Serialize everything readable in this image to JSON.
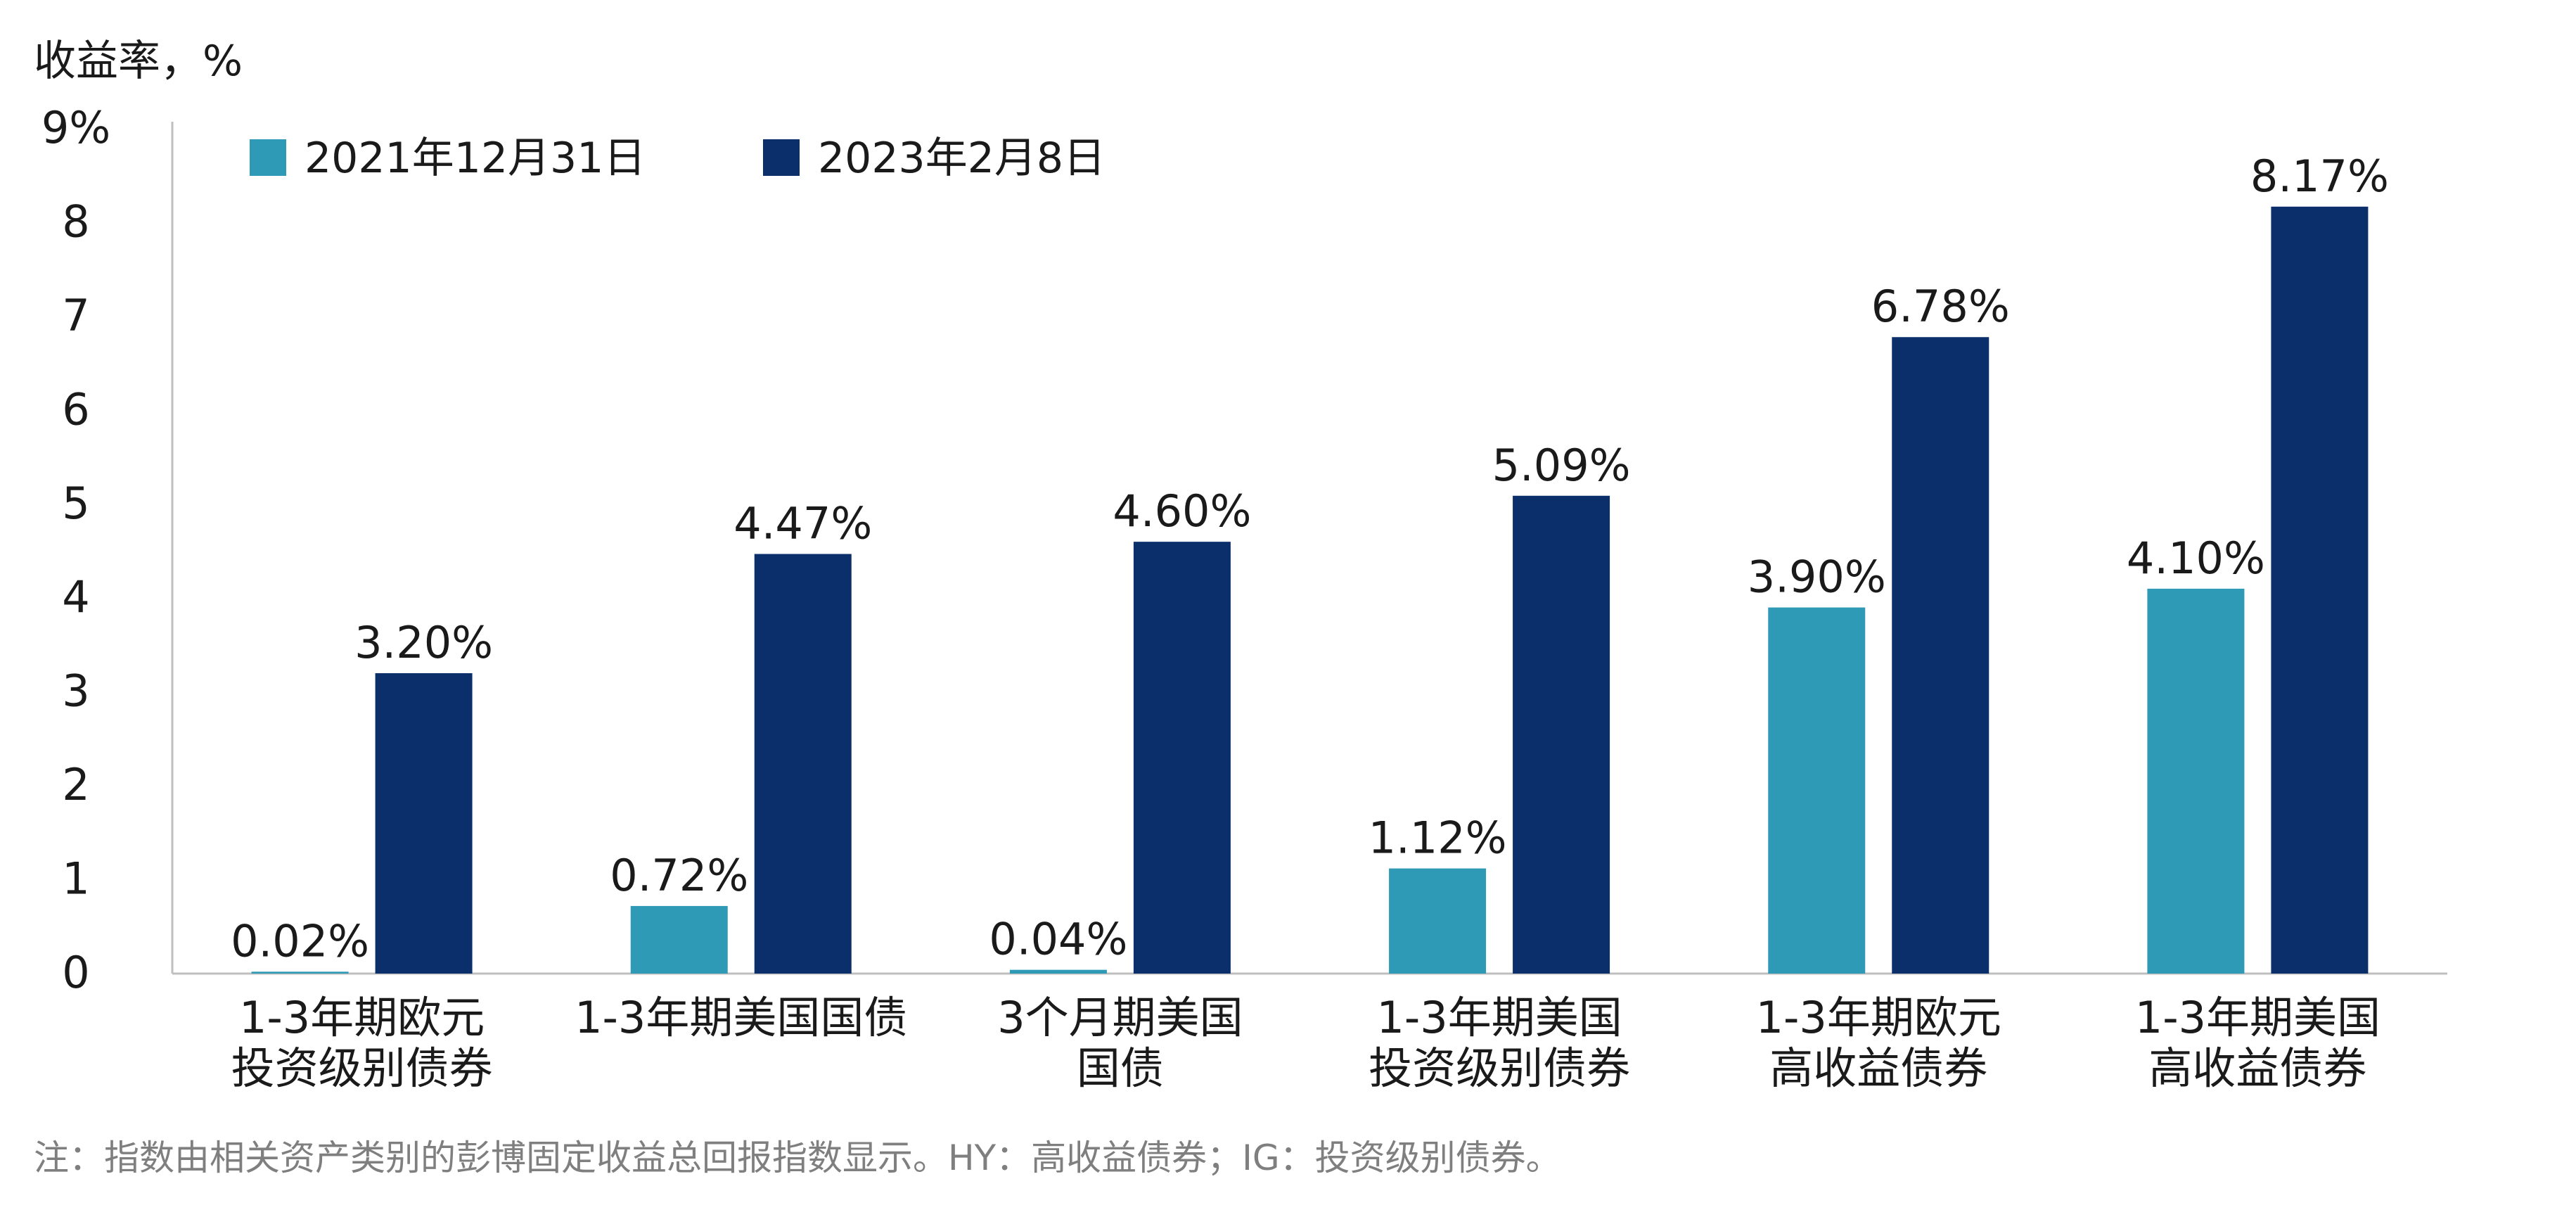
{
  "chart_data": {
    "type": "bar",
    "ylabel": "收益率，%",
    "ylim": [
      0,
      9
    ],
    "yticks": [
      "0",
      "1",
      "2",
      "3",
      "4",
      "5",
      "6",
      "7",
      "8",
      "9%"
    ],
    "categories": [
      [
        "1-3年期欧元",
        "投资级别债券"
      ],
      [
        "1-3年期美国国债"
      ],
      [
        "3个月期美国",
        "国债"
      ],
      [
        "1-3年期美国",
        "投资级别债券"
      ],
      [
        "1-3年期欧元",
        "高收益债券"
      ],
      [
        "1-3年期美国",
        "高收益债券"
      ]
    ],
    "series": [
      {
        "name": "2021年12月31日",
        "color": "#2e9ab5",
        "values": [
          0.02,
          0.72,
          0.04,
          1.12,
          3.9,
          4.1
        ],
        "labels": [
          "0.02%",
          "0.72%",
          "0.04%",
          "1.12%",
          "3.90%",
          "4.10%"
        ]
      },
      {
        "name": "2023年2月8日",
        "color": "#0a2f6b",
        "values": [
          3.2,
          4.47,
          4.6,
          5.09,
          6.78,
          8.17
        ],
        "labels": [
          "3.20%",
          "4.47%",
          "4.60%",
          "5.09%",
          "6.78%",
          "8.17%"
        ]
      }
    ],
    "legend_position": "top-left",
    "grid": false
  },
  "footnote": "注：指数由相关资产类别的彭博固定收益总回报指数显示。HY：高收益债券；IG：投资级别债券。"
}
